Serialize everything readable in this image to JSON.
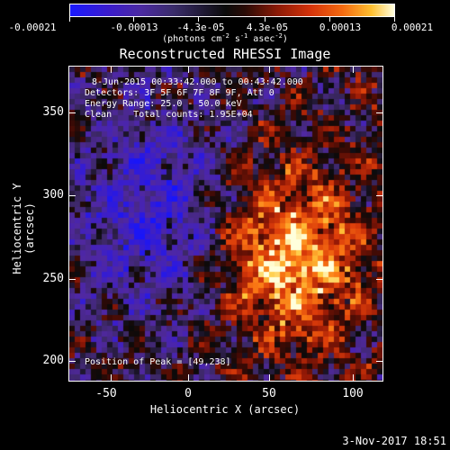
{
  "colorbar": {
    "ticks": [
      "-0.00021",
      "-0.00013",
      "-4.3e-05",
      "4.3e-05",
      "0.00013",
      "0.00021"
    ],
    "unit": "(photons cm",
    "unit_sup1": "-2",
    "unit_mid": " s",
    "unit_sup2": "-1",
    "unit_end": " asec",
    "unit_sup3": "-2",
    "unit_close": ")"
  },
  "title": "Reconstructed RHESSI Image",
  "info": {
    "time_range": "8-Jun-2015 00:33:42.000 to 00:43:42.000",
    "detectors": "Detectors: 3F 5F 6F 7F 8F 9F, Att 0",
    "energy": "Energy Range: 25.0 - 50.0 keV",
    "clean": "Clean    Total counts: 1.95E+04",
    "peak": "Position of Peak = [49,238]"
  },
  "axes": {
    "xlabel": "Heliocentric X (arcsec)",
    "ylabel": "Heliocentric Y (arcsec)",
    "xticks": [
      "-50",
      "0",
      "50",
      "100"
    ],
    "yticks": [
      "350",
      "300",
      "250",
      "200"
    ]
  },
  "footer": "3-Nov-2017 18:51"
}
